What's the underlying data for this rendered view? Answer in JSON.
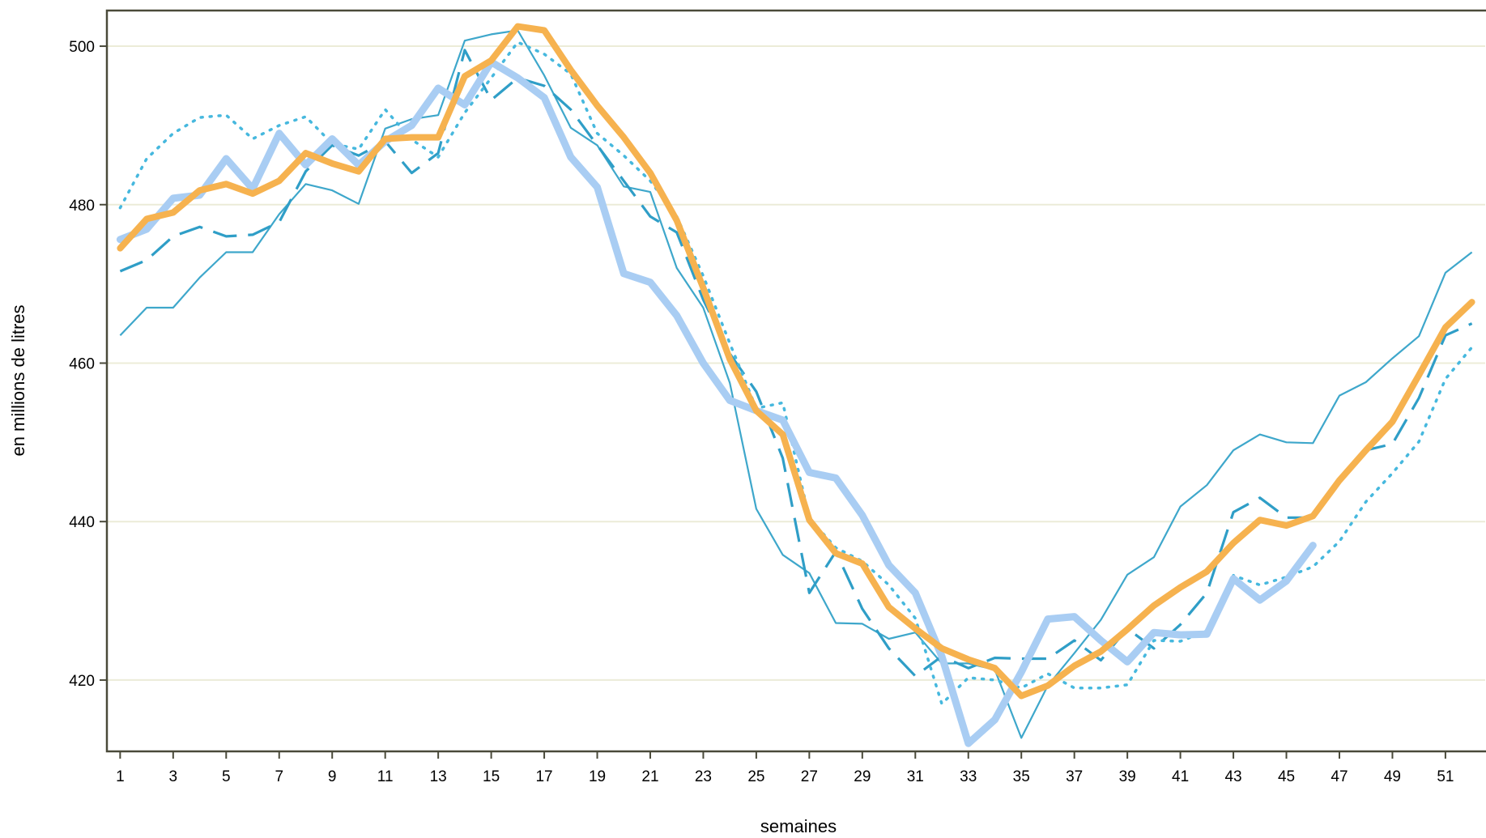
{
  "chart_data": {
    "type": "line",
    "title": "",
    "xlabel": "semaines",
    "ylabel": "en millions de litres",
    "xlim": [
      0.5,
      52.5
    ],
    "ylim": [
      411,
      504.5
    ],
    "x_ticks": [
      1,
      3,
      5,
      7,
      9,
      11,
      13,
      15,
      17,
      19,
      21,
      23,
      25,
      27,
      29,
      31,
      33,
      35,
      37,
      39,
      41,
      43,
      45,
      47,
      49,
      51
    ],
    "y_ticks": [
      420,
      440,
      460,
      480,
      500
    ],
    "grid": "horizontal",
    "legend": "none",
    "colors": {
      "thin_solid": "#3ea7cb",
      "dashed": "#2f9ec7",
      "dotted": "#46b8de",
      "light_blue_thick": "#a9cdf3",
      "orange_thick": "#f6b24f",
      "grid": "#ececd8",
      "frame": "#4a4a3a"
    },
    "series": [
      {
        "style": "thin-solid",
        "x": [
          1,
          2,
          3,
          4,
          5,
          6,
          7,
          8,
          9,
          10,
          11,
          12,
          13,
          14,
          15,
          16,
          17,
          18,
          19,
          20,
          21,
          22,
          23,
          24,
          25,
          26,
          27,
          28,
          29,
          30,
          31,
          32,
          33,
          34,
          35,
          36,
          37,
          38,
          39,
          40,
          41,
          42,
          43,
          44,
          45,
          46,
          47,
          48,
          49,
          50,
          51,
          52
        ],
        "values": [
          463.5,
          467,
          467,
          470.8,
          474,
          474,
          478.8,
          482.6,
          481.8,
          480.1,
          489.6,
          490.8,
          491.3,
          500.7,
          501.5,
          502,
          496.3,
          489.7,
          487.5,
          482.3,
          481.6,
          472,
          467,
          457.5,
          441.6,
          435.8,
          433.5,
          427.2,
          427.1,
          425.2,
          426,
          422.1,
          422.1,
          421.3,
          412.7,
          419.3,
          423.4,
          427.6,
          433.3,
          435.5,
          441.9,
          444.6,
          449,
          451,
          450,
          449.9,
          455.9,
          457.6,
          460.6,
          463.4,
          471.4,
          474
        ]
      },
      {
        "style": "dashed",
        "x": [
          1,
          2,
          3,
          4,
          5,
          6,
          7,
          8,
          9,
          10,
          11,
          12,
          13,
          14,
          15,
          16,
          17,
          18,
          19,
          20,
          21,
          22,
          23,
          24,
          25,
          26,
          27,
          28,
          29,
          30,
          31,
          32,
          33,
          34,
          35,
          36,
          37,
          38,
          39,
          40,
          41,
          42,
          43,
          44,
          45,
          46,
          47,
          48,
          49,
          50,
          51,
          52
        ],
        "values": [
          471.6,
          473,
          476,
          477.2,
          476,
          476.2,
          477.8,
          484.2,
          487.5,
          486.2,
          488,
          484,
          486.5,
          499.5,
          493.2,
          496,
          495,
          492,
          487.5,
          483,
          478.5,
          476.5,
          468,
          461.2,
          456.4,
          448,
          431,
          436.2,
          429,
          424,
          420.5,
          423,
          421.5,
          422.8,
          422.7,
          422.7,
          425,
          422.5,
          426.5,
          424,
          427,
          431,
          441.2,
          443,
          440.5,
          440.5,
          445,
          449,
          449.8,
          455.6,
          463.5,
          465
        ]
      },
      {
        "style": "dotted",
        "x": [
          1,
          2,
          3,
          4,
          5,
          6,
          7,
          8,
          9,
          10,
          11,
          12,
          13,
          14,
          15,
          16,
          17,
          18,
          19,
          20,
          21,
          22,
          23,
          24,
          25,
          26,
          27,
          28,
          29,
          30,
          31,
          32,
          33,
          34,
          35,
          36,
          37,
          38,
          39,
          40,
          41,
          42,
          43,
          44,
          45,
          46,
          47,
          48,
          49,
          50,
          51,
          52
        ],
        "values": [
          479.6,
          485.8,
          489,
          491,
          491.3,
          488.3,
          490,
          491.1,
          487.7,
          487,
          492,
          488.2,
          486,
          491.6,
          496,
          500.5,
          499,
          496.5,
          489,
          486.2,
          483,
          478.5,
          471,
          462.5,
          454.3,
          455,
          440.4,
          436.7,
          435,
          432,
          427.8,
          417,
          420.3,
          420,
          419,
          420.8,
          419,
          419,
          419.4,
          425,
          424.9,
          426.2,
          433.2,
          432,
          433,
          434.3,
          437.5,
          442.5,
          446.1,
          450.1,
          458,
          462
        ]
      },
      {
        "style": "light-blue-thick",
        "x": [
          1,
          2,
          3,
          4,
          5,
          6,
          7,
          8,
          9,
          10,
          11,
          12,
          13,
          14,
          15,
          16,
          17,
          18,
          19,
          20,
          21,
          22,
          23,
          24,
          25,
          26,
          27,
          28,
          29,
          30,
          31,
          32,
          33,
          34,
          35,
          36,
          37,
          38,
          39,
          40,
          41,
          42,
          43,
          44,
          45,
          46
        ],
        "values": [
          475.6,
          476.9,
          480.8,
          481.2,
          485.8,
          482,
          489,
          485,
          488.3,
          485,
          488,
          490,
          494.7,
          492.6,
          498,
          496,
          493.5,
          486,
          482.2,
          471.3,
          470.2,
          466,
          460,
          455.3,
          454,
          452.8,
          446.2,
          445.5,
          440.8,
          434.5,
          431,
          423,
          412,
          415,
          421,
          427.7,
          428,
          425,
          422.3,
          426,
          425.7,
          425.8,
          432.8,
          430.1,
          432.5,
          437
        ]
      },
      {
        "style": "orange-thick",
        "x": [
          1,
          2,
          3,
          4,
          5,
          6,
          7,
          8,
          9,
          10,
          11,
          12,
          13,
          14,
          15,
          16,
          17,
          18,
          19,
          20,
          21,
          22,
          23,
          24,
          25,
          26,
          27,
          28,
          29,
          30,
          31,
          32,
          33,
          34,
          35,
          36,
          37,
          38,
          39,
          40,
          41,
          42,
          43,
          44,
          45,
          46,
          47,
          48,
          49,
          50,
          51,
          52
        ],
        "values": [
          474.5,
          478.2,
          479,
          481.8,
          482.6,
          481.4,
          483,
          486.5,
          485.2,
          484.2,
          488.3,
          488.5,
          488.5,
          496.2,
          498.2,
          502.5,
          502,
          497,
          492.5,
          488.5,
          484,
          478,
          469.5,
          460.5,
          454,
          451,
          440.2,
          436,
          434.7,
          429.2,
          426.5,
          424,
          422.6,
          421.5,
          418,
          419.3,
          421.8,
          423.6,
          426.4,
          429.4,
          431.7,
          433.7,
          437.3,
          440.2,
          439.5,
          440.7,
          445.2,
          449,
          452.6,
          458.5,
          464.5,
          467.7
        ]
      }
    ]
  }
}
